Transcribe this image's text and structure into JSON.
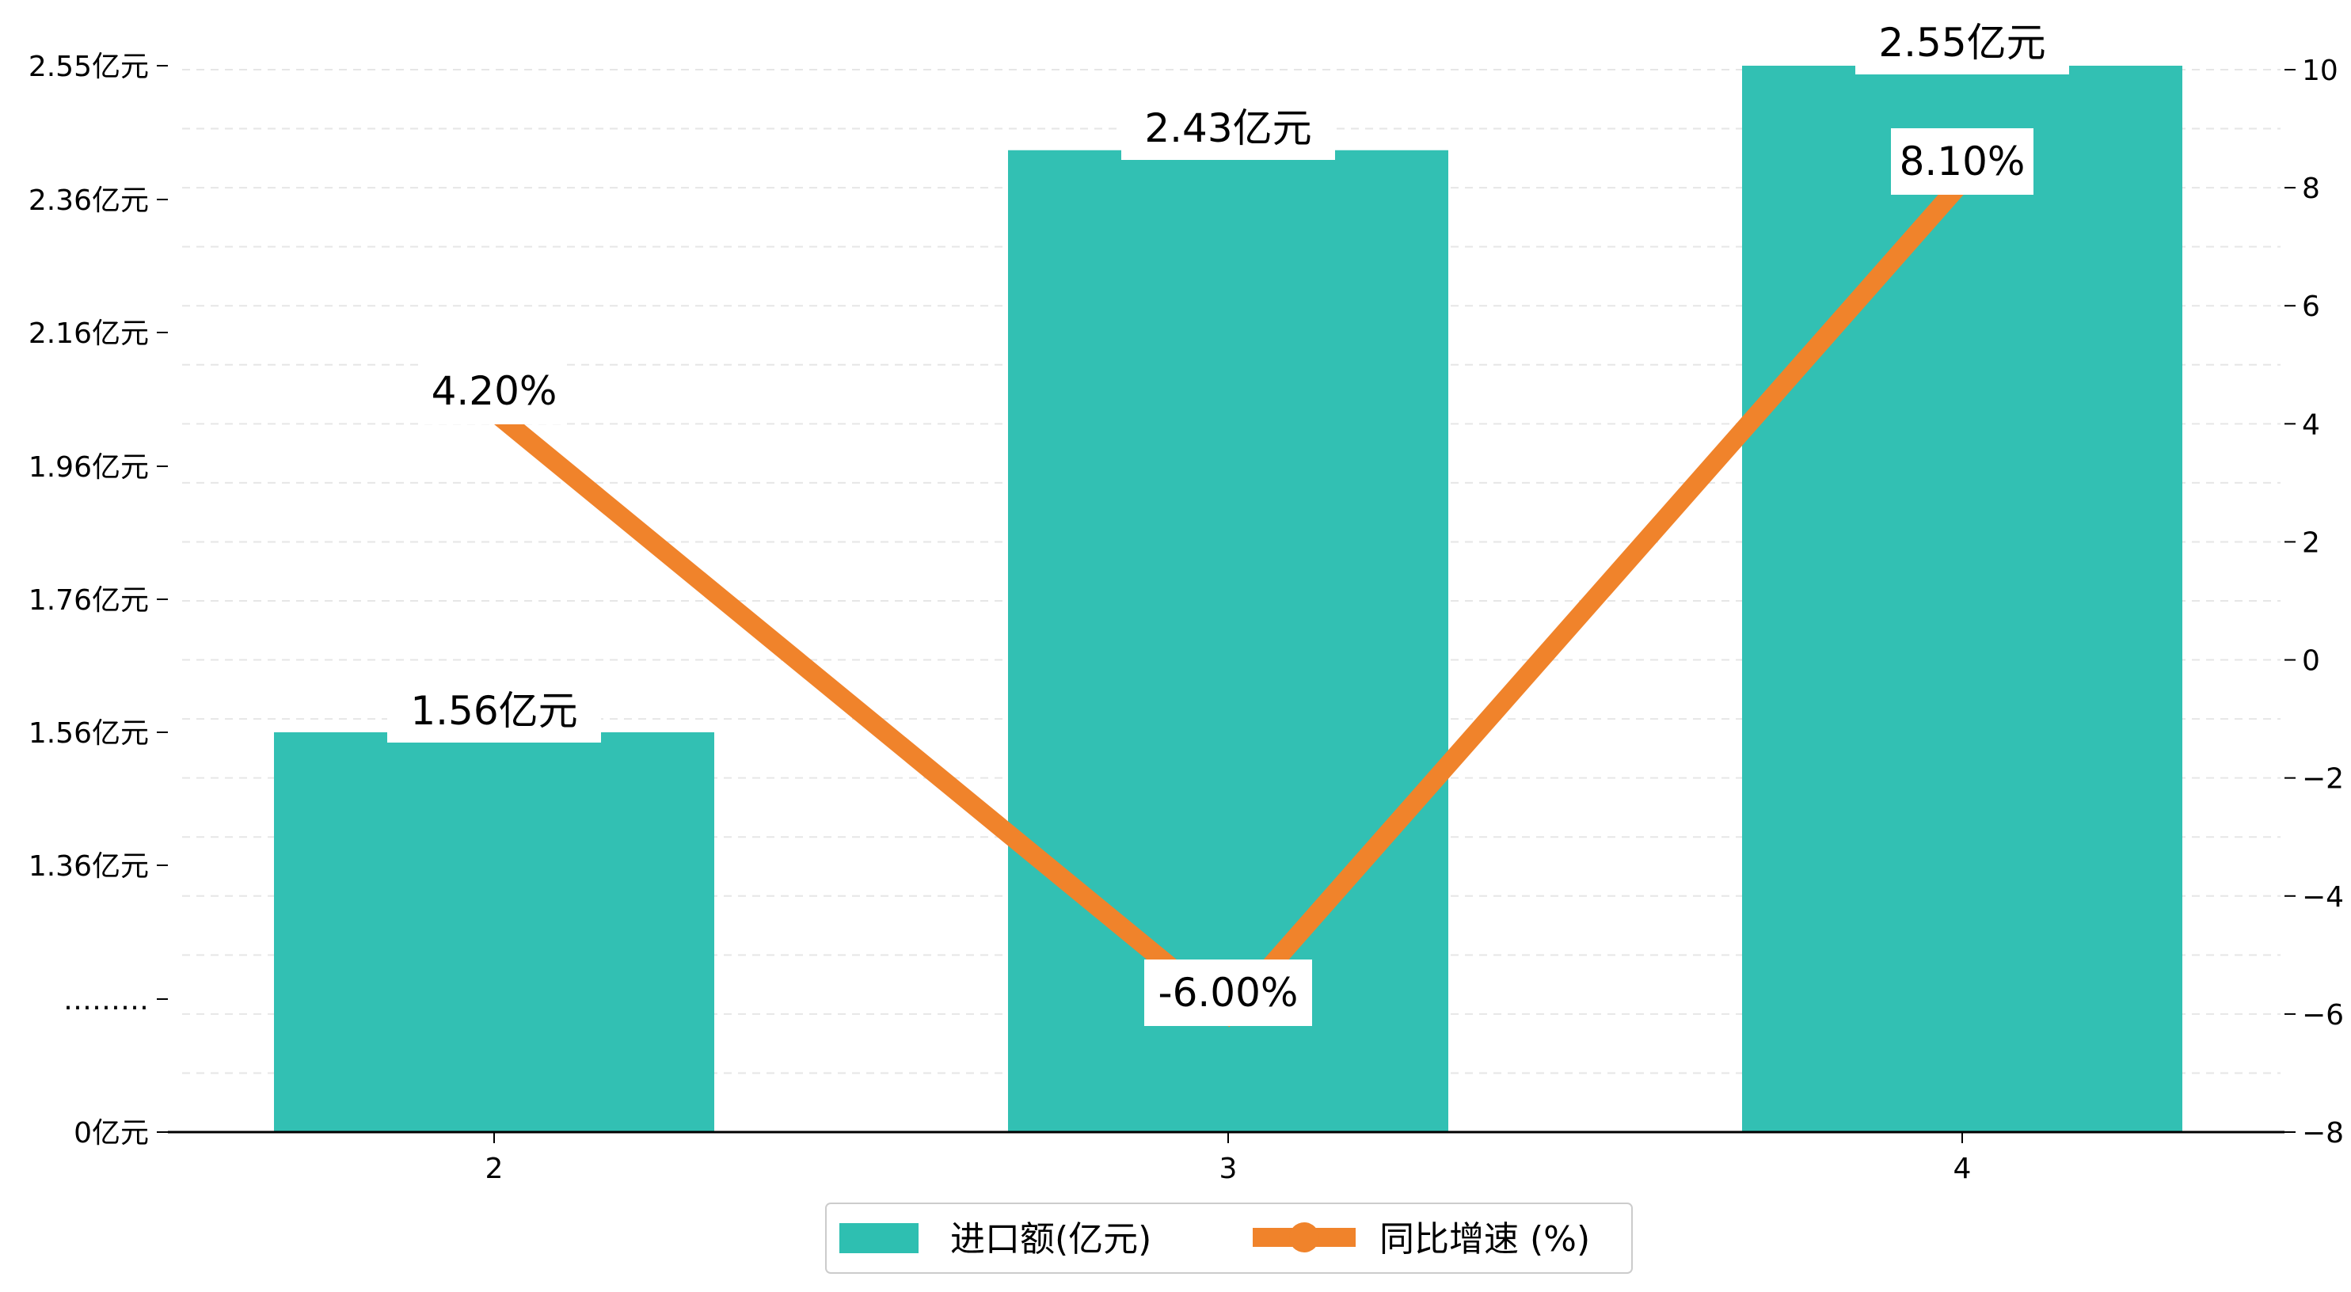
{
  "chart_data": {
    "type": "bar",
    "categories": [
      "2",
      "3",
      "4"
    ],
    "series": [
      {
        "name": "进口额(亿元)",
        "type": "bar",
        "axis": "left",
        "color": "#2ebfb1",
        "values": [
          1.56,
          2.43,
          2.55
        ],
        "labels": [
          "1.56亿元",
          "2.43亿元",
          "2.55亿元"
        ]
      },
      {
        "name": "同比增速 (%)",
        "type": "line",
        "axis": "right",
        "color": "#f0832b",
        "values": [
          4.2,
          -6.0,
          8.1
        ],
        "labels": [
          "4.20%",
          "-6.00%",
          "8.10%"
        ]
      }
    ],
    "left_axis": {
      "tick_labels": [
        "0亿元",
        "………",
        "1.36亿元",
        "1.56亿元",
        "1.76亿元",
        "1.96亿元",
        "2.16亿元",
        "2.36亿元",
        "2.55亿元"
      ],
      "note": "broken axis between 0 and 1.36"
    },
    "right_axis": {
      "ylim": [
        -8,
        10
      ],
      "ticks": [
        "−8",
        "−6",
        "−4",
        "−2",
        "0",
        "2",
        "4",
        "6",
        "8",
        "10"
      ]
    },
    "grid": true,
    "legend_placement": "bottom-center"
  }
}
